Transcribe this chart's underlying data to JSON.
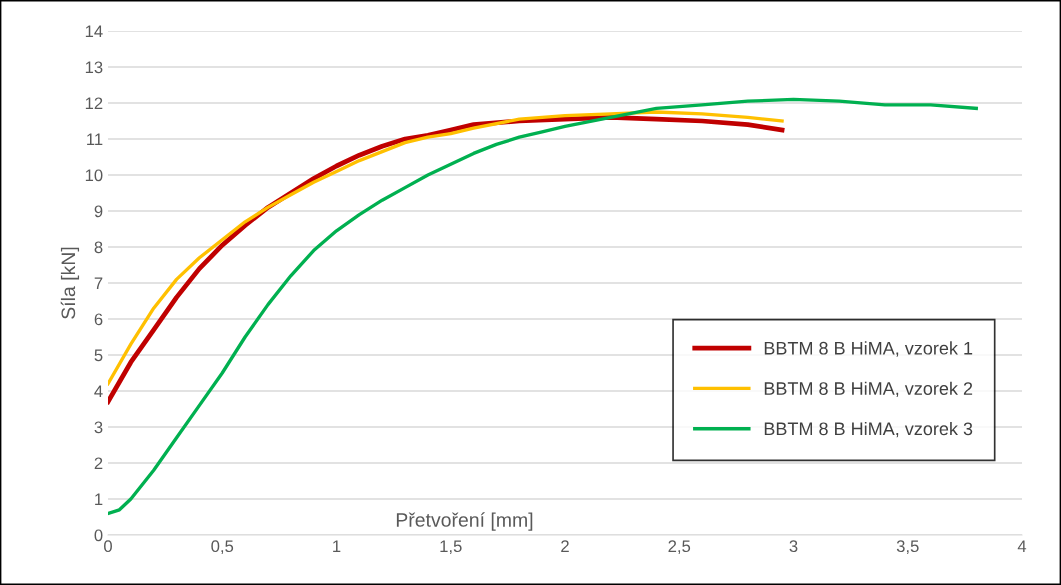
{
  "chart_data": {
    "type": "line",
    "xlabel": "Přetvoření [mm]",
    "ylabel": "Síla [kN]",
    "xlim": [
      0,
      4
    ],
    "ylim": [
      0,
      14
    ],
    "xticks": [
      0,
      {
        "value": 0.5,
        "label": "0,5"
      },
      1,
      {
        "value": 1.5,
        "label": "1,5"
      },
      2,
      {
        "value": 2.5,
        "label": "2,5"
      },
      3,
      {
        "value": 3.5,
        "label": "3,5"
      },
      4
    ],
    "yticks": [
      0,
      1,
      2,
      3,
      4,
      5,
      6,
      7,
      8,
      9,
      10,
      11,
      12,
      13,
      14
    ],
    "grid": "y",
    "legend": "bottom right",
    "marker": "none",
    "line_style": "solid",
    "series": [
      {
        "name": "BBTM 8 B HiMA, vzorek 1",
        "color": "#c00000",
        "x": [
          0,
          0.1,
          0.2,
          0.3,
          0.4,
          0.5,
          0.6,
          0.7,
          0.8,
          0.9,
          1.0,
          1.1,
          1.2,
          1.3,
          1.4,
          1.5,
          1.6,
          1.8,
          2.0,
          2.2,
          2.4,
          2.6,
          2.8,
          2.95
        ],
        "values": [
          3.7,
          4.8,
          5.7,
          6.6,
          7.4,
          8.05,
          8.6,
          9.1,
          9.5,
          9.9,
          10.25,
          10.55,
          10.8,
          11.0,
          11.1,
          11.25,
          11.4,
          11.5,
          11.55,
          11.6,
          11.55,
          11.5,
          11.4,
          11.25
        ]
      },
      {
        "name": "BBTM 8 B HiMA, vzorek 2",
        "color": "#ffc000",
        "x": [
          0,
          0.1,
          0.2,
          0.3,
          0.4,
          0.5,
          0.6,
          0.7,
          0.8,
          0.9,
          1.0,
          1.1,
          1.2,
          1.3,
          1.4,
          1.5,
          1.6,
          1.8,
          2.0,
          2.2,
          2.4,
          2.6,
          2.8,
          2.95
        ],
        "values": [
          4.2,
          5.3,
          6.3,
          7.1,
          7.7,
          8.2,
          8.7,
          9.1,
          9.45,
          9.8,
          10.1,
          10.4,
          10.65,
          10.9,
          11.05,
          11.15,
          11.3,
          11.55,
          11.65,
          11.7,
          11.75,
          11.7,
          11.6,
          11.5
        ]
      },
      {
        "name": "BBTM 8 B HiMA, vzorek 3",
        "color": "#00b050",
        "x": [
          0,
          0.05,
          0.1,
          0.2,
          0.3,
          0.4,
          0.5,
          0.6,
          0.7,
          0.8,
          0.9,
          1.0,
          1.1,
          1.2,
          1.3,
          1.4,
          1.5,
          1.6,
          1.7,
          1.8,
          1.9,
          2.0,
          2.2,
          2.4,
          2.6,
          2.8,
          3.0,
          3.2,
          3.4,
          3.6,
          3.8
        ],
        "values": [
          0.6,
          0.7,
          1.0,
          1.8,
          2.7,
          3.6,
          4.5,
          5.5,
          6.4,
          7.2,
          7.9,
          8.45,
          8.9,
          9.3,
          9.65,
          10.0,
          10.3,
          10.6,
          10.85,
          11.05,
          11.2,
          11.35,
          11.6,
          11.85,
          11.95,
          12.05,
          12.1,
          12.05,
          11.95,
          11.95,
          11.85
        ]
      }
    ]
  }
}
